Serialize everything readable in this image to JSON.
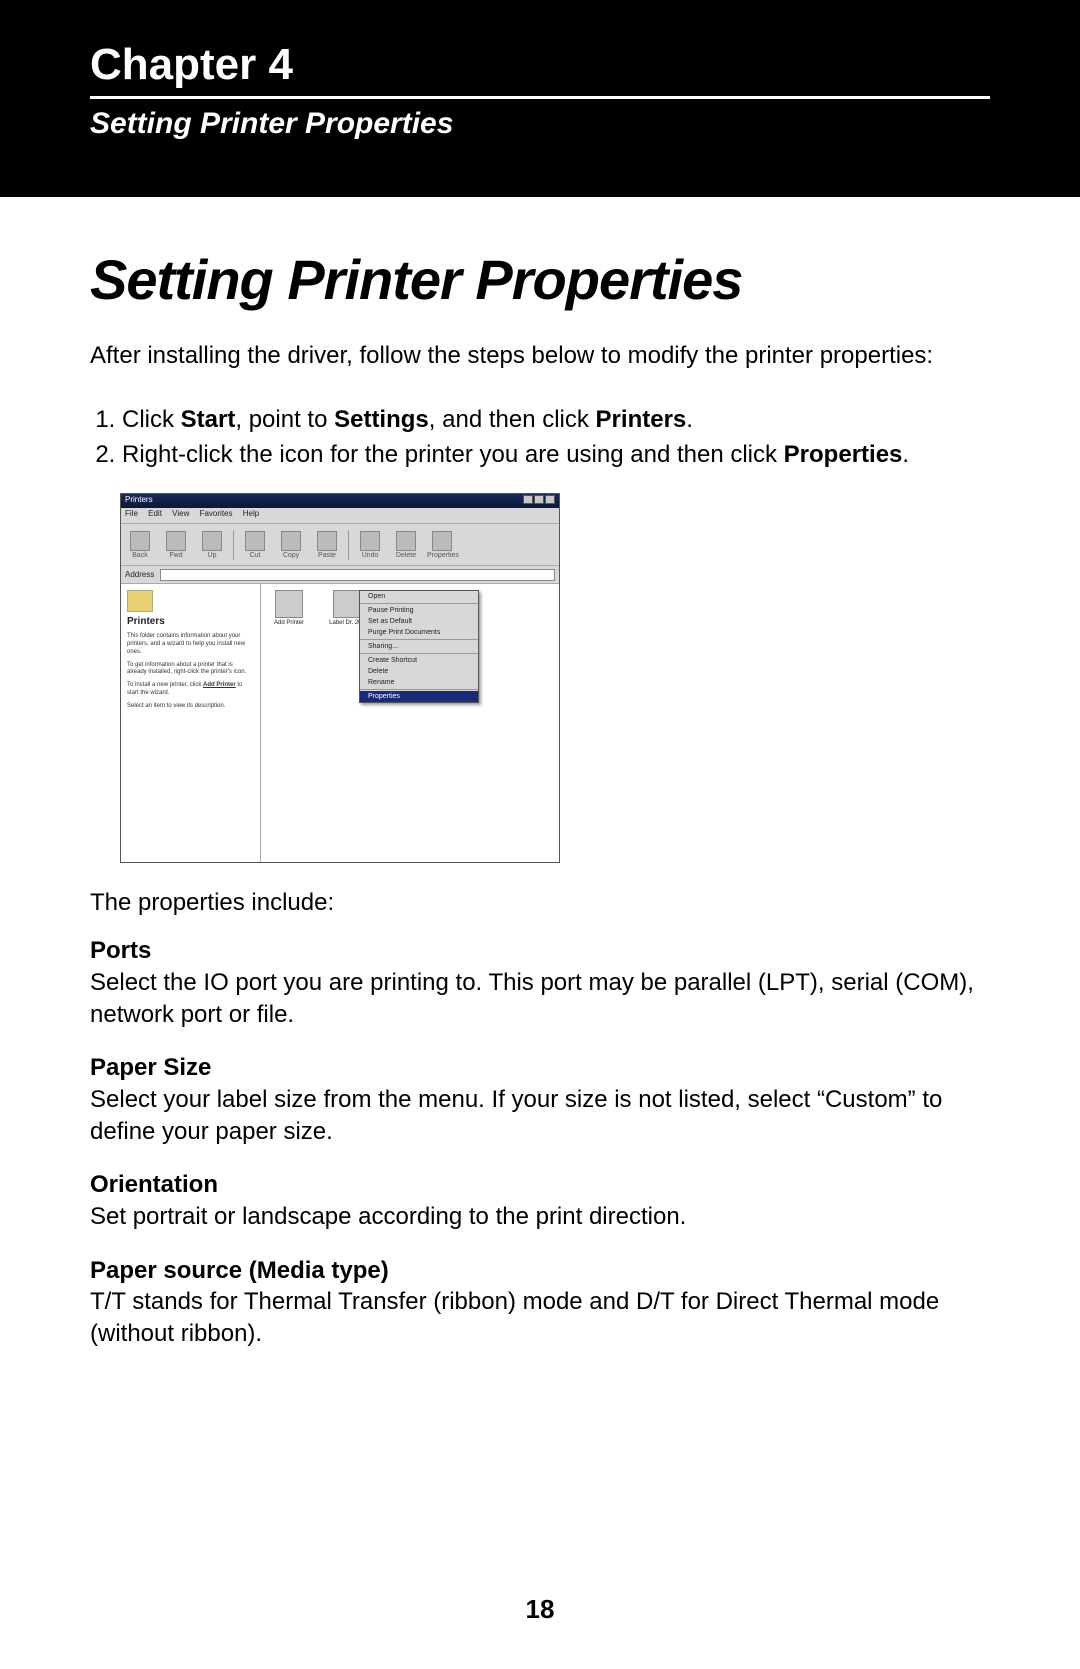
{
  "header": {
    "chapter": "Chapter 4",
    "subtitle": "Setting Printer Properties"
  },
  "title": "Setting Printer Properties",
  "intro": "After installing the driver, follow the steps below to modify the printer properties:",
  "steps": {
    "s1a": "Click ",
    "s1b": "Start",
    "s1c": ", point to ",
    "s1d": "Settings",
    "s1e": ", and then click ",
    "s1f": "Printers",
    "s1g": ".",
    "s2a": "Right-click the icon for the printer you are using and then click ",
    "s2b": "Properties",
    "s2c": "."
  },
  "screenshot": {
    "title": "Printers",
    "menus": {
      "m1": "File",
      "m2": "Edit",
      "m3": "View",
      "m4": "Favorites",
      "m5": "Help"
    },
    "toolbar": {
      "t1": "Back",
      "t2": "Fwd",
      "t3": "Up",
      "t4": "Cut",
      "t5": "Copy",
      "t6": "Paste",
      "t7": "Undo",
      "t8": "Delete",
      "t9": "Properties"
    },
    "address_label": "Address",
    "left": {
      "heading": "Printers",
      "p1": "This folder contains information about your printers, and a wizard to help you install new ones.",
      "p2": "To get information about a printer that is already installed, right-click the printer's icon.",
      "p3a": "To install a new printer, click ",
      "p3link": "Add Printer",
      "p3b": " to start the wizard.",
      "p4": "Select an item to view its description."
    },
    "wizards": {
      "w1": "Add Printer",
      "w2": "Label Dr. 200"
    },
    "ctx": {
      "c1": "Open",
      "c2": "Pause Printing",
      "c3": "Set as Default",
      "c4": "Purge Print Documents",
      "c5": "Sharing...",
      "c6": "Create Shortcut",
      "c7": "Delete",
      "c8": "Rename",
      "c9": "Properties"
    }
  },
  "props_intro": "The properties include:",
  "props": {
    "ports": {
      "h": "Ports",
      "t": "Select the IO port you are printing to. This port may be parallel (LPT), serial (COM), network port or file."
    },
    "paper": {
      "h": "Paper Size",
      "t": "Select your label size from the menu. If your size is not listed, select “Custom” to define your paper size."
    },
    "orient": {
      "h": "Orientation",
      "t": "Set portrait or landscape according to the print direction."
    },
    "source": {
      "h": "Paper source (Media type)",
      "t": "T/T stands for Thermal Transfer (ribbon) mode and D/T for Direct Thermal mode (without ribbon)."
    }
  },
  "page_number": "18"
}
